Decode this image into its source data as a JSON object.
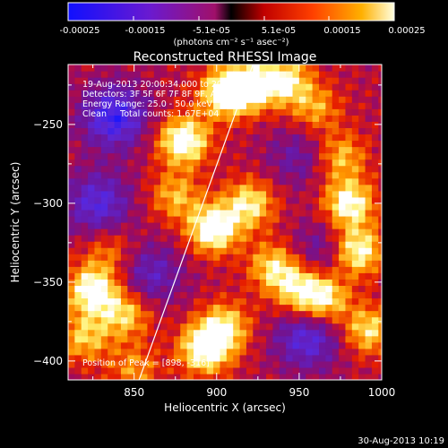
{
  "colorbar": {
    "tick_labels": [
      "-0.00025",
      "-0.00015",
      "-5.1e-05",
      "5.1e-05",
      "0.00015",
      "0.00025"
    ],
    "unit_label": "(photons cm⁻² s⁻¹ asec⁻²)"
  },
  "footer": {
    "timestamp": "30-Aug-2013 10:19"
  },
  "chart_data": {
    "type": "heatmap",
    "title": "Reconstructed RHESSI Image",
    "xlabel": "Heliocentric X (arcsec)",
    "ylabel": "Heliocentric Y (arcsec)",
    "xlim": [
      810,
      1000
    ],
    "ylim": [
      -412,
      -212
    ],
    "x_ticks": [
      850,
      900,
      950,
      1000
    ],
    "y_ticks": [
      -250,
      -300,
      -350,
      -400
    ],
    "x_tick_labels": [
      "850",
      "900",
      "950",
      "1000"
    ],
    "y_tick_labels": [
      "−250",
      "−300",
      "−350",
      "−400"
    ],
    "color_range": [
      -0.00025,
      0.00025
    ],
    "colormap": [
      "#000000",
      "#1a1aff",
      "#7a1fd0",
      "#b0106a",
      "#ff2a00",
      "#ffa000",
      "#ffff80",
      "#ffffff"
    ],
    "annotations": [
      "19-Aug-2013 20:00:34.000 to 20:02:34.000",
      "Detectors: 3F 5F 6F 7F 8F 9F, Aft 0",
      "Energy Range: 25.0 - 50.0 keV",
      "Clean     Total counts: 1.67E+04",
      "Position of Peak = [898, -316]"
    ],
    "peak": [
      898,
      -316
    ],
    "limb_line": [
      [
        853,
        -412
      ],
      [
        922,
        -212
      ]
    ],
    "hot_spots": [
      {
        "x": 880,
        "y": -260,
        "amp": 1.0
      },
      {
        "x": 905,
        "y": -230,
        "amp": 0.9
      },
      {
        "x": 920,
        "y": -225,
        "amp": 0.85
      },
      {
        "x": 942,
        "y": -222,
        "amp": 0.75
      },
      {
        "x": 898,
        "y": -316,
        "amp": 1.0
      },
      {
        "x": 875,
        "y": -295,
        "amp": 0.55
      },
      {
        "x": 920,
        "y": -300,
        "amp": 0.75
      },
      {
        "x": 935,
        "y": -340,
        "amp": 0.7
      },
      {
        "x": 950,
        "y": -355,
        "amp": 0.65
      },
      {
        "x": 965,
        "y": -360,
        "amp": 0.8
      },
      {
        "x": 980,
        "y": -300,
        "amp": 0.9
      },
      {
        "x": 985,
        "y": -330,
        "amp": 0.95
      },
      {
        "x": 975,
        "y": -270,
        "amp": 0.6
      },
      {
        "x": 960,
        "y": -240,
        "amp": 0.5
      },
      {
        "x": 992,
        "y": -380,
        "amp": 0.7
      },
      {
        "x": 825,
        "y": -355,
        "amp": 0.95
      },
      {
        "x": 845,
        "y": -370,
        "amp": 0.65
      },
      {
        "x": 820,
        "y": -385,
        "amp": 0.6
      },
      {
        "x": 893,
        "y": -392,
        "amp": 1.0
      },
      {
        "x": 905,
        "y": -378,
        "amp": 0.7
      },
      {
        "x": 850,
        "y": -405,
        "amp": 0.45
      },
      {
        "x": 835,
        "y": -330,
        "amp": 0.4
      }
    ],
    "cold_spots": [
      {
        "x": 838,
        "y": -245,
        "amp": 1.0
      },
      {
        "x": 828,
        "y": -300,
        "amp": 0.8
      },
      {
        "x": 860,
        "y": -345,
        "amp": 0.6
      },
      {
        "x": 955,
        "y": -385,
        "amp": 0.8
      },
      {
        "x": 965,
        "y": -330,
        "amp": 0.5
      },
      {
        "x": 950,
        "y": -270,
        "amp": 0.45
      }
    ]
  }
}
